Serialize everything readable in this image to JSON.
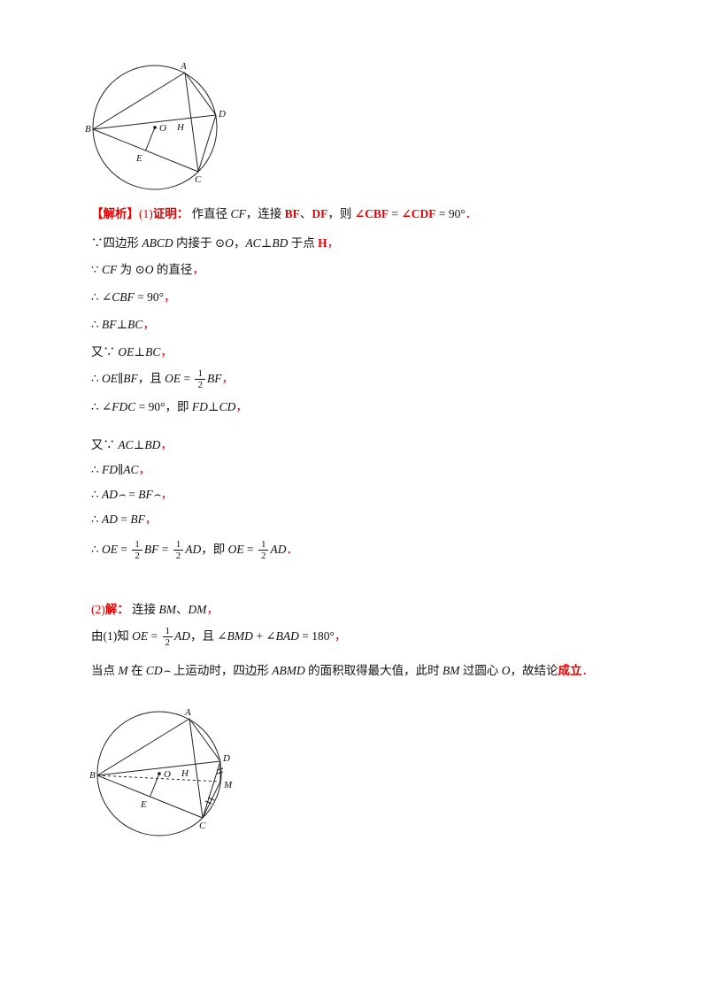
{
  "colors": {
    "red": "#e60000",
    "black": "#111111"
  },
  "figure1": {
    "labels": {
      "A": "A",
      "B": "B",
      "C": "C",
      "D": "D",
      "O": "O",
      "E": "E",
      "H": "H"
    }
  },
  "figure2": {
    "labels": {
      "A": "A",
      "B": "B",
      "C": "C",
      "D": "D",
      "O": "O",
      "E": "E",
      "H": "H",
      "M": "M"
    }
  },
  "solution": {
    "lines": [
      {
        "mt": 0,
        "seg": [
          {
            "t": "【解析】",
            "s": "rb"
          },
          {
            "t": "(1)",
            "s": "r"
          },
          {
            "t": "证明：",
            "s": "rb"
          },
          {
            "t": " 作直径 ",
            "s": "k"
          },
          {
            "t": "CF",
            "s": "i"
          },
          {
            "t": "，连接 ",
            "s": "k"
          },
          {
            "t": "BF",
            "s": "rb"
          },
          {
            "t": "、",
            "s": "k"
          },
          {
            "t": "DF",
            "s": "rb"
          },
          {
            "t": "，则 ",
            "s": "k"
          },
          {
            "t": "∠CBF",
            "s": "rb"
          },
          {
            "t": " = ",
            "s": "k"
          },
          {
            "t": "∠CDF",
            "s": "rb"
          },
          {
            "t": " = 90°",
            "s": "k"
          },
          {
            "t": "．",
            "s": "r"
          }
        ]
      },
      {
        "mt": 12,
        "seg": [
          {
            "t": "∵四边形 ",
            "s": "k"
          },
          {
            "t": "ABCD",
            "s": "i"
          },
          {
            "t": " 内接于 ",
            "s": "k"
          },
          {
            "t": "⊙O",
            "s": "i"
          },
          {
            "t": "，",
            "s": "k"
          },
          {
            "t": "AC",
            "s": "i"
          },
          {
            "t": "⊥",
            "s": "k"
          },
          {
            "t": "BD",
            "s": "i"
          },
          {
            "t": " 于点 ",
            "s": "k"
          },
          {
            "t": "H",
            "s": "rb"
          },
          {
            "t": "，",
            "s": "r"
          }
        ]
      },
      {
        "mt": 9,
        "seg": [
          {
            "t": "∵ ",
            "s": "k"
          },
          {
            "t": "CF",
            "s": "i"
          },
          {
            "t": " 为 ",
            "s": "k"
          },
          {
            "t": "⊙O",
            "s": "i"
          },
          {
            "t": " 的直径",
            "s": "k"
          },
          {
            "t": "，",
            "s": "r"
          }
        ]
      },
      {
        "mt": 10,
        "seg": [
          {
            "t": "∴ ",
            "s": "k"
          },
          {
            "t": "∠CBF",
            "s": "i"
          },
          {
            "t": " = 90°",
            "s": "k"
          },
          {
            "t": "，",
            "s": "r"
          }
        ]
      },
      {
        "mt": 10,
        "seg": [
          {
            "t": "∴ ",
            "s": "k"
          },
          {
            "t": "BF",
            "s": "i"
          },
          {
            "t": "⊥",
            "s": "k"
          },
          {
            "t": "BC",
            "s": "i"
          },
          {
            "t": "，",
            "s": "r"
          }
        ]
      },
      {
        "mt": 10,
        "seg": [
          {
            "t": "又∵ ",
            "s": "k"
          },
          {
            "t": "OE",
            "s": "i"
          },
          {
            "t": "⊥",
            "s": "k"
          },
          {
            "t": "BC",
            "s": "i"
          },
          {
            "t": "，",
            "s": "r"
          }
        ]
      },
      {
        "mt": 8,
        "seg": [
          {
            "t": "∴ ",
            "s": "k"
          },
          {
            "t": "OE",
            "s": "i"
          },
          {
            "t": "∥",
            "s": "k"
          },
          {
            "t": "BF",
            "s": "i"
          },
          {
            "t": "，且 ",
            "s": "k"
          },
          {
            "t": "OE",
            "s": "i"
          },
          {
            "t": " = ",
            "s": "k"
          },
          {
            "frac": [
              "1",
              "2"
            ]
          },
          {
            "t": "BF",
            "s": "i"
          },
          {
            "t": "，",
            "s": "r"
          }
        ]
      },
      {
        "mt": 8,
        "seg": [
          {
            "t": "∴ ",
            "s": "k"
          },
          {
            "t": "∠FDC",
            "s": "i"
          },
          {
            "t": " = 90°，即 ",
            "s": "k"
          },
          {
            "t": "FD",
            "s": "i"
          },
          {
            "t": "⊥",
            "s": "k"
          },
          {
            "t": "CD",
            "s": "i"
          },
          {
            "t": "，",
            "s": "r"
          }
        ]
      },
      {
        "mt": 22,
        "seg": [
          {
            "t": "又∵ ",
            "s": "k"
          },
          {
            "t": "AC",
            "s": "i"
          },
          {
            "t": "⊥",
            "s": "k"
          },
          {
            "t": "BD",
            "s": "i"
          },
          {
            "t": "，",
            "s": "r"
          }
        ]
      },
      {
        "mt": 7,
        "seg": [
          {
            "t": "∴ ",
            "s": "k"
          },
          {
            "t": "FD",
            "s": "i"
          },
          {
            "t": "∥",
            "s": "k"
          },
          {
            "t": "AC",
            "s": "i"
          },
          {
            "t": "，",
            "s": "r"
          }
        ]
      },
      {
        "mt": 7,
        "seg": [
          {
            "t": "∴ ",
            "s": "k"
          },
          {
            "t": "AD⌢",
            "s": "i"
          },
          {
            "t": " = ",
            "s": "k"
          },
          {
            "t": "BF⌢",
            "s": "i"
          },
          {
            "t": "，",
            "s": "r"
          }
        ]
      },
      {
        "mt": 7,
        "seg": [
          {
            "t": "∴ ",
            "s": "k"
          },
          {
            "t": "AD",
            "s": "i"
          },
          {
            "t": " = ",
            "s": "k"
          },
          {
            "t": "BF",
            "s": "i"
          },
          {
            "t": "，",
            "s": "r"
          }
        ]
      },
      {
        "mt": 12,
        "seg": [
          {
            "t": "∴ ",
            "s": "k"
          },
          {
            "t": "OE",
            "s": "i"
          },
          {
            "t": " = ",
            "s": "k"
          },
          {
            "frac": [
              "1",
              "2"
            ]
          },
          {
            "t": "BF",
            "s": "i"
          },
          {
            "t": " = ",
            "s": "k"
          },
          {
            "frac": [
              "1",
              "2"
            ]
          },
          {
            "t": "AD",
            "s": "i"
          },
          {
            "t": "，即 ",
            "s": "k"
          },
          {
            "t": "OE",
            "s": "i"
          },
          {
            "t": " = ",
            "s": "k"
          },
          {
            "frac": [
              "1",
              "2"
            ]
          },
          {
            "t": "AD",
            "s": "i"
          },
          {
            "t": "．",
            "s": "r"
          }
        ]
      },
      {
        "mt": 44,
        "seg": [
          {
            "t": "(2)",
            "s": "r"
          },
          {
            "t": "解：",
            "s": "rb"
          },
          {
            "t": " 连接 ",
            "s": "k"
          },
          {
            "t": "BM",
            "s": "i"
          },
          {
            "t": "、",
            "s": "k"
          },
          {
            "t": "DM",
            "s": "i"
          },
          {
            "t": "，",
            "s": "r"
          }
        ]
      },
      {
        "mt": 8,
        "seg": [
          {
            "t": "由(1)知 ",
            "s": "k"
          },
          {
            "t": "OE",
            "s": "i"
          },
          {
            "t": " = ",
            "s": "k"
          },
          {
            "frac": [
              "1",
              "2"
            ]
          },
          {
            "t": "AD",
            "s": "i"
          },
          {
            "t": "，且 ",
            "s": "k"
          },
          {
            "t": "∠BMD",
            "s": "i"
          },
          {
            "t": " + ",
            "s": "k"
          },
          {
            "t": "∠BAD",
            "s": "i"
          },
          {
            "t": " = 180°",
            "s": "k"
          },
          {
            "t": "，",
            "s": "r"
          }
        ]
      },
      {
        "mt": 14,
        "seg": [
          {
            "t": "当点 ",
            "s": "k"
          },
          {
            "t": "M",
            "s": "i"
          },
          {
            "t": " 在 ",
            "s": "k"
          },
          {
            "t": "CD⌢",
            "s": "i"
          },
          {
            "t": " 上运动时，四边形 ",
            "s": "k"
          },
          {
            "t": "ABMD",
            "s": "i"
          },
          {
            "t": " 的面积取得最大值，此时 ",
            "s": "k"
          },
          {
            "t": "BM",
            "s": "i"
          },
          {
            "t": " 过圆心 ",
            "s": "k"
          },
          {
            "t": "O",
            "s": "i"
          },
          {
            "t": "，故结论",
            "s": "k"
          },
          {
            "t": "成立",
            "s": "rb"
          },
          {
            "t": "．",
            "s": "r"
          }
        ]
      }
    ]
  }
}
